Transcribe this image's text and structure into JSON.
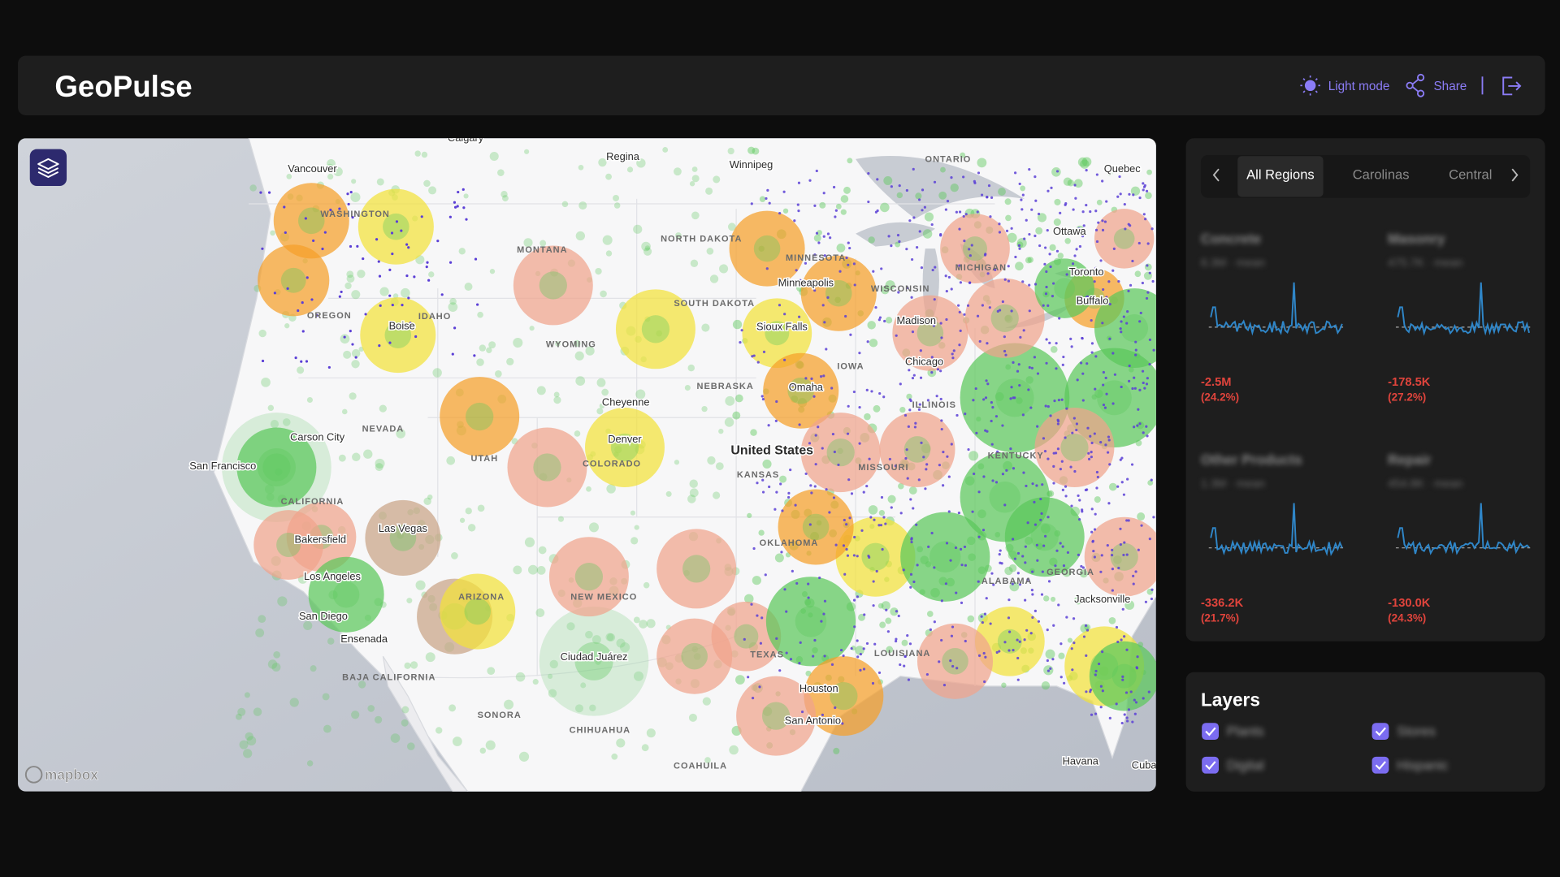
{
  "header": {
    "title": "GeoPulse",
    "actions": [
      "Light mode",
      "Share"
    ]
  },
  "tabs": [
    "All Regions",
    "Carolinas",
    "Central"
  ],
  "cards": [
    {
      "title": "Concrete",
      "subtitle": "6.3M · mean",
      "delta": "-2.5M",
      "percent": "(24.2%)"
    },
    {
      "title": "Masonry",
      "subtitle": "475.7K · mean",
      "delta": "-178.5K",
      "percent": "(27.2%)"
    },
    {
      "title": "Other Products",
      "subtitle": "1.3M · mean",
      "delta": "-336.2K",
      "percent": "(21.7%)"
    },
    {
      "title": "Repair",
      "subtitle": "454.8K · mean",
      "delta": "-130.0K",
      "percent": "(24.3%)"
    }
  ],
  "layers": {
    "title": "Layers",
    "items": [
      "Plants",
      "Stores",
      "Digital",
      "Hispanic"
    ]
  },
  "map": {
    "attribution": "mapbox",
    "labels": [
      "Vancouver",
      "Calgary",
      "Regina",
      "Winnipeg",
      "ONTARIO",
      "Quebec",
      "WASHINGTON",
      "MONTANA",
      "NORTH DAKOTA",
      "MINNESOTA",
      "Ottawa",
      "MICHIGAN",
      "Toronto",
      "Minneapolis",
      "WISCONSIN",
      "SOUTH DAKOTA",
      "Buffalo",
      "OREGON",
      "IDAHO",
      "Boise",
      "Sioux Falls",
      "Madison",
      "WYOMING",
      "Chicago",
      "NEBRASKA",
      "Omaha",
      "Cheyenne",
      "IOWA",
      "NEVADA",
      "Carson City",
      "United States",
      "Denver",
      "San Francisco",
      "UTAH",
      "COLORADO",
      "KANSAS",
      "MISSOURI",
      "ILLINOIS",
      "KENTUCKY",
      "CALIFORNIA",
      "Las Vegas",
      "Bakersfield",
      "OKLAHOMA",
      "Los Angeles",
      "ARIZONA",
      "NEW MEXICO",
      "San Diego",
      "Ensenada",
      "ALABAMA",
      "GEORGIA",
      "Jacksonville",
      "TEXAS",
      "LOUISIANA",
      "Ciudad Juárez",
      "BAJA CALIFORNIA",
      "Houston",
      "SONORA",
      "San Antonio",
      "CHIHUAHUA",
      "COAHUILA",
      "Havana",
      "Cuba"
    ]
  }
}
